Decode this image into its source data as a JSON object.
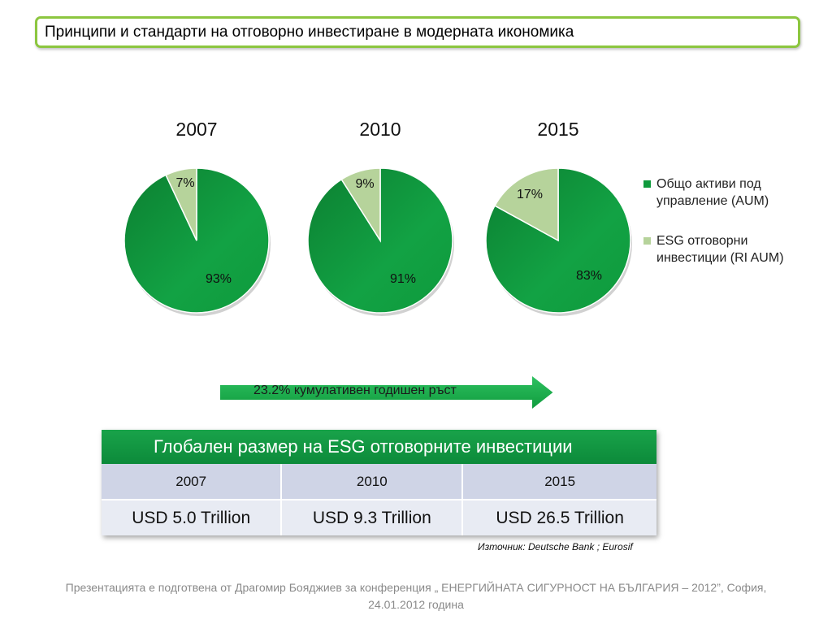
{
  "header": {
    "title": "Принципи и стандарти на отговорно инвестиране в модерната икономика"
  },
  "chart_data": [
    {
      "type": "pie",
      "title": "2007",
      "labels": [
        "Общо активи под управление (AUM)",
        "ESG отговорни инвестиции (RI AUM)"
      ],
      "values": [
        93,
        7
      ],
      "value_labels": [
        "93%",
        "7%"
      ],
      "colors": [
        "#0f9a3c",
        "#b6d39b"
      ]
    },
    {
      "type": "pie",
      "title": "2010",
      "labels": [
        "Общо активи под управление (AUM)",
        "ESG отговорни инвестиции (RI AUM)"
      ],
      "values": [
        91,
        9
      ],
      "value_labels": [
        "91%",
        "9%"
      ],
      "colors": [
        "#0f9a3c",
        "#b6d39b"
      ]
    },
    {
      "type": "pie",
      "title": "2015",
      "labels": [
        "Общо активи под управление (AUM)",
        "ESG отговорни инвестиции (RI AUM)"
      ],
      "values": [
        83,
        17
      ],
      "value_labels": [
        "83%",
        "17%"
      ],
      "colors": [
        "#0f9a3c",
        "#b6d39b"
      ]
    }
  ],
  "legend": {
    "placement": "right",
    "items": [
      {
        "label": "Общо активи под управление (AUM)",
        "color": "#0f9a3c"
      },
      {
        "label": "ESG отговорни инвестиции (RI AUM)",
        "color": "#b6d39b"
      }
    ]
  },
  "growth_arrow": {
    "text": "23.2% кумулативен годишен ръст",
    "color": "#15a84b"
  },
  "table": {
    "title": "Глобален размер на ESG отговорните инвестиции",
    "years": [
      "2007",
      "2010",
      "2015"
    ],
    "values": [
      "USD 5.0 Trillion",
      "USD 9.3 Trillion",
      "USD 26.5 Trillion"
    ]
  },
  "source": "Източник: Deutsche Bank ; Eurosif",
  "footer": {
    "line1": "Презентацията е подготвена от Драгомир Бояджиев за конференция „ ЕНЕРГИЙНАТА СИГУРНОСТ НА БЪЛГАРИЯ – 2012”, София,",
    "line2": "24.01.2012 година"
  }
}
